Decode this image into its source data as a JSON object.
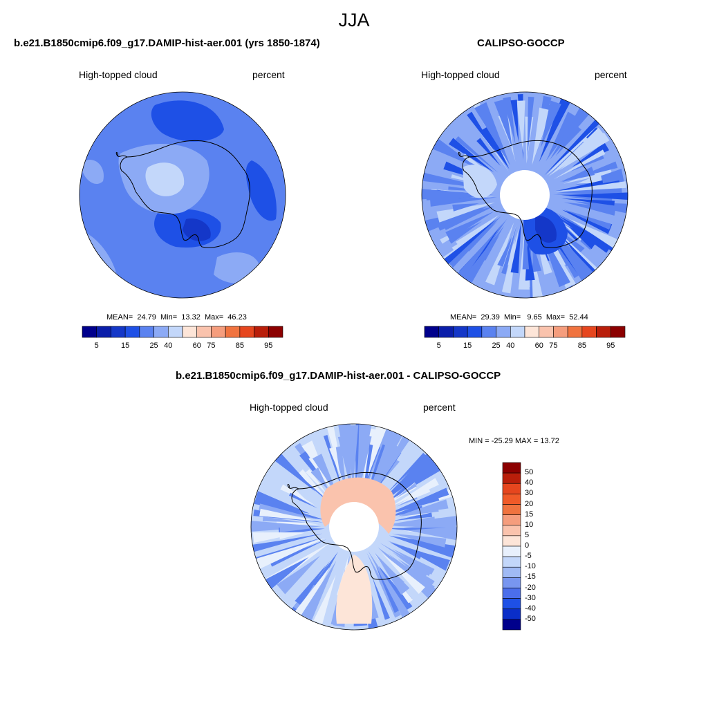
{
  "figure": {
    "season": "JJA"
  },
  "panels": [
    {
      "title": "b.e21.B1850cmip6.f09_g17.DAMIP-hist-aer.001 (yrs 1850-1874)",
      "variable": "High-topped cloud",
      "units": "percent",
      "stats": {
        "mean_label": "MEAN=",
        "mean": "24.79",
        "min_label": "Min=",
        "min": "13.32",
        "max_label": "Max=",
        "max": "46.23"
      },
      "colorbar_ticks": [
        "5",
        "15",
        "25",
        "40",
        "60",
        "75",
        "85",
        "95"
      ]
    },
    {
      "title": "CALIPSO-GOCCP",
      "variable": "High-topped cloud",
      "units": "percent",
      "stats": {
        "mean_label": "MEAN=",
        "mean": "29.39",
        "min_label": "Min=",
        "min": "9.65",
        "max_label": "Max=",
        "max": "52.44"
      },
      "colorbar_ticks": [
        "5",
        "15",
        "25",
        "40",
        "60",
        "75",
        "85",
        "95"
      ]
    },
    {
      "title": "b.e21.B1850cmip6.f09_g17.DAMIP-hist-aer.001 - CALIPSO-GOCCP",
      "variable": "High-topped cloud",
      "units": "percent",
      "stats_text": "MIN = -25.29 MAX =  13.72",
      "colorbar_ticks": [
        "50",
        "40",
        "30",
        "20",
        "15",
        "10",
        "5",
        "0",
        "-5",
        "-10",
        "-15",
        "-20",
        "-30",
        "-40",
        "-50"
      ]
    }
  ],
  "colors": {
    "abs_scale": [
      "#00008c",
      "#0a1eaa",
      "#1437c8",
      "#1e50e6",
      "#5a82f0",
      "#8caaf5",
      "#c3d7fa",
      "#fde5d8",
      "#fac3ad",
      "#f59d7d",
      "#f0733f",
      "#e6461e",
      "#b91e0a",
      "#8c0000"
    ],
    "diff_scale": [
      "#8c0000",
      "#b91e0a",
      "#e6461e",
      "#f05a28",
      "#f0733f",
      "#f59d7d",
      "#fac3ad",
      "#fde5d8",
      "#e8f0fc",
      "#c3d7fa",
      "#a0baf5",
      "#7896f0",
      "#4b6eeb",
      "#1e50e6",
      "#0a2ec8",
      "#00008c"
    ]
  }
}
